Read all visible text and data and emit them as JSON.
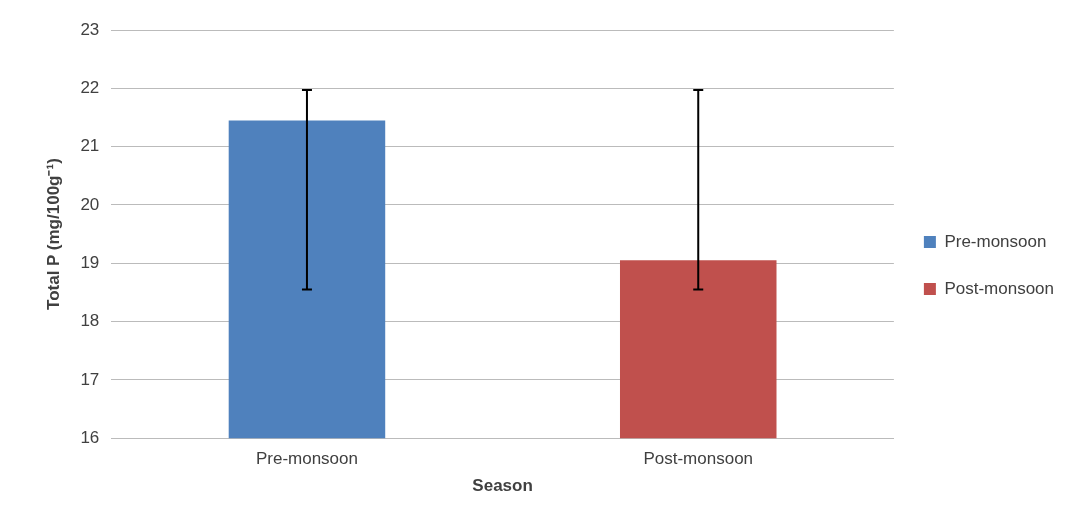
{
  "chart_data": {
    "type": "bar",
    "xlabel": "Season",
    "ylabel": "Total P (mg/100g⁻¹)",
    "categories": [
      "Pre-monsoon",
      "Post-monsoon"
    ],
    "series": [
      {
        "name": "Pre-monsoon",
        "color": "#4f81bd",
        "values": [
          21.45,
          null
        ],
        "errors": [
          [
            18.55,
            21.97
          ],
          null
        ]
      },
      {
        "name": "Post-monsoon",
        "color": "#c0504d",
        "values": [
          null,
          19.05
        ],
        "errors": [
          null,
          [
            18.55,
            21.97
          ]
        ]
      }
    ],
    "ylim": [
      16,
      23
    ],
    "yticks": [
      16,
      17,
      18,
      19,
      20,
      21,
      22,
      23
    ],
    "grid": "y",
    "legend": "right"
  }
}
